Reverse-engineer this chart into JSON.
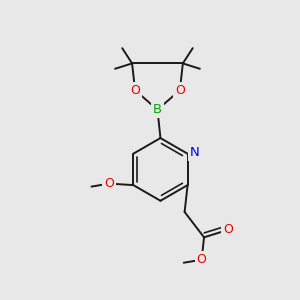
{
  "bg_color": "#e8e8e8",
  "bond_color": "#1a1a1a",
  "N_color": "#0000ee",
  "O_color": "#ee0000",
  "B_color": "#00aa00",
  "lw": 1.4,
  "figsize": [
    3.0,
    3.0
  ],
  "dpi": 100,
  "xlim": [
    0.0,
    1.0
  ],
  "ylim": [
    0.0,
    1.0
  ]
}
